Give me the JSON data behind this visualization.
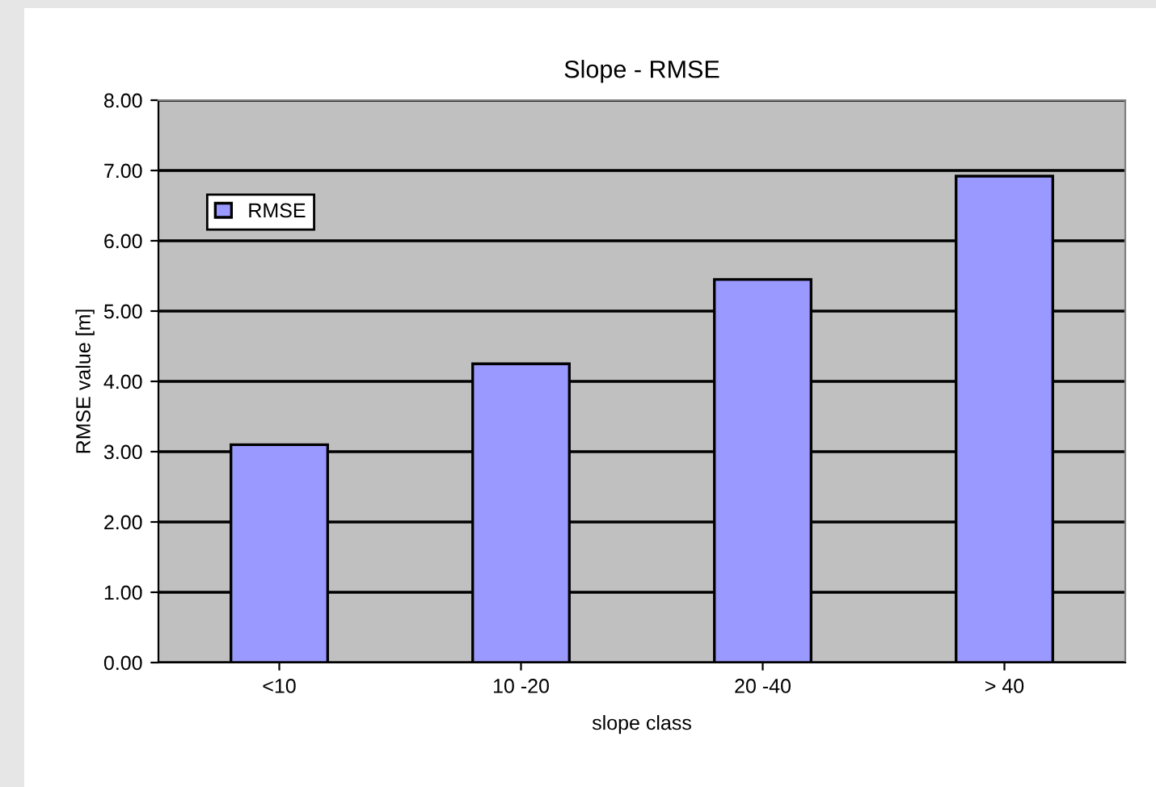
{
  "chart_data": {
    "type": "bar",
    "title": "Slope - RMSE",
    "xlabel": "slope class",
    "ylabel": "RMSE value [m]",
    "categories": [
      "<10",
      "10 -20",
      "20 -40",
      "> 40"
    ],
    "series": [
      {
        "name": "RMSE",
        "color": "#9999ff",
        "values": [
          3.1,
          4.25,
          5.45,
          6.92
        ]
      }
    ],
    "ylim": [
      0,
      8
    ],
    "yticks": [
      {
        "value": 0,
        "label": "0.00"
      },
      {
        "value": 1,
        "label": "1.00"
      },
      {
        "value": 2,
        "label": "2.00"
      },
      {
        "value": 3,
        "label": "3.00"
      },
      {
        "value": 4,
        "label": "4.00"
      },
      {
        "value": 5,
        "label": "5.00"
      },
      {
        "value": 6,
        "label": "6.00"
      },
      {
        "value": 7,
        "label": "7.00"
      },
      {
        "value": 8,
        "label": "8.00"
      }
    ],
    "grid": "y",
    "legend": "top left"
  }
}
